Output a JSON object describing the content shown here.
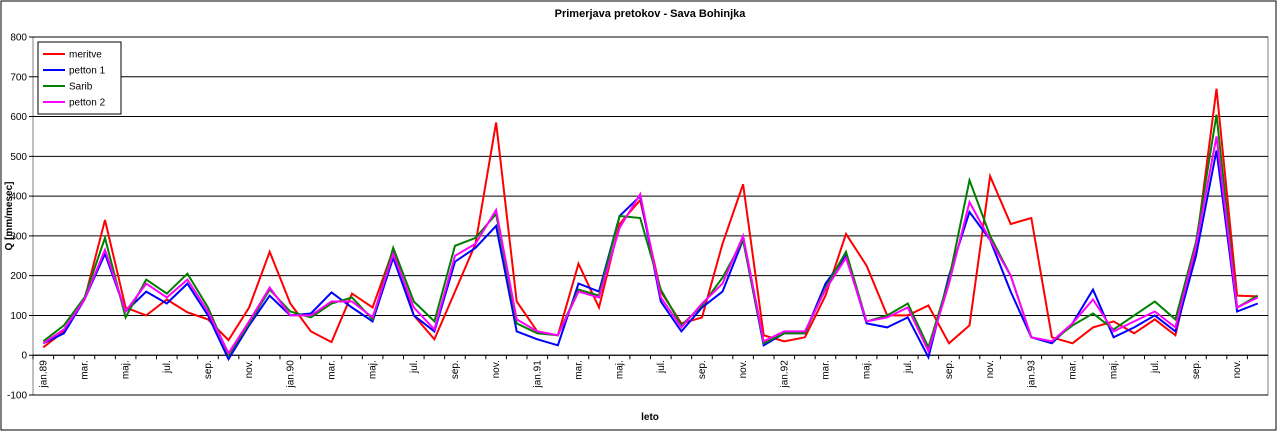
{
  "chart_data": {
    "type": "line",
    "title": "Primerjava pretokov - Sava Bohinjka",
    "xlabel": "leto",
    "ylabel": "Q [mm/mesec]",
    "categories": [
      "jan.89",
      null,
      "mar.",
      null,
      "maj.",
      null,
      "jul.",
      null,
      "sep.",
      null,
      "nov.",
      null,
      "jan.90",
      null,
      "mar.",
      null,
      "maj.",
      null,
      "jul.",
      null,
      "sep.",
      null,
      "nov.",
      null,
      "jan.91",
      null,
      "mar.",
      null,
      "maj.",
      null,
      "jul.",
      null,
      "sep.",
      null,
      "nov.",
      null,
      "jan.92",
      null,
      "mar.",
      null,
      "maj.",
      null,
      "jul.",
      null,
      "sep.",
      null,
      "nov.",
      null,
      "jan.93",
      null,
      "mar.",
      null,
      "maj.",
      null,
      "jul.",
      null,
      "sep.",
      null,
      "nov.",
      null
    ],
    "series": [
      {
        "name": "meritve",
        "color": "#ff0000",
        "values": [
          20,
          60,
          140,
          340,
          120,
          100,
          140,
          108,
          90,
          38,
          120,
          260,
          130,
          60,
          33,
          155,
          120,
          265,
          100,
          40,
          160,
          280,
          585,
          135,
          60,
          50,
          230,
          120,
          330,
          390,
          160,
          80,
          95,
          280,
          430,
          50,
          35,
          45,
          150,
          305,
          225,
          100,
          100,
          125,
          30,
          75,
          450,
          330,
          345,
          45,
          30,
          70,
          85,
          55,
          90,
          50,
          270,
          670,
          150,
          148
        ]
      },
      {
        "name": "petton 1",
        "color": "#0000ff",
        "values": [
          30,
          55,
          140,
          255,
          110,
          160,
          130,
          180,
          100,
          -10,
          75,
          150,
          100,
          105,
          158,
          120,
          85,
          245,
          100,
          60,
          235,
          270,
          325,
          60,
          40,
          25,
          180,
          160,
          350,
          400,
          135,
          60,
          120,
          160,
          290,
          25,
          55,
          55,
          180,
          250,
          80,
          70,
          95,
          -5,
          200,
          360,
          290,
          160,
          45,
          30,
          80,
          165,
          45,
          70,
          100,
          60,
          250,
          515,
          110,
          130
        ]
      },
      {
        "name": "Sarib",
        "color": "#008000",
        "values": [
          35,
          75,
          145,
          295,
          95,
          190,
          155,
          205,
          120,
          0,
          80,
          165,
          110,
          95,
          130,
          145,
          90,
          270,
          135,
          85,
          275,
          295,
          355,
          80,
          55,
          50,
          165,
          150,
          350,
          345,
          165,
          75,
          125,
          195,
          290,
          30,
          55,
          55,
          170,
          260,
          85,
          100,
          130,
          20,
          190,
          440,
          300,
          200,
          45,
          35,
          75,
          105,
          65,
          100,
          135,
          90,
          285,
          605,
          120,
          150
        ]
      },
      {
        "name": "petton 2",
        "color": "#ff00ff",
        "values": [
          30,
          65,
          140,
          265,
          110,
          180,
          145,
          190,
          110,
          5,
          85,
          170,
          100,
          100,
          135,
          135,
          95,
          255,
          120,
          65,
          250,
          280,
          365,
          90,
          60,
          50,
          160,
          145,
          320,
          405,
          145,
          70,
          130,
          180,
          300,
          35,
          60,
          60,
          165,
          245,
          85,
          95,
          120,
          10,
          180,
          385,
          290,
          200,
          45,
          35,
          80,
          140,
          60,
          85,
          110,
          70,
          275,
          550,
          120,
          145
        ]
      }
    ],
    "ylim": [
      -100,
      800
    ],
    "yticks": [
      -100,
      0,
      100,
      200,
      300,
      400,
      500,
      600,
      700,
      800
    ],
    "grid": true,
    "legend": "upper-left"
  }
}
